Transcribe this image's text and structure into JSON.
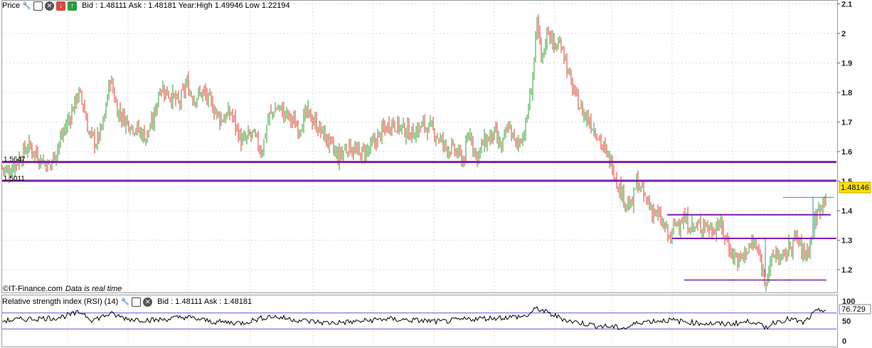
{
  "price_panel": {
    "title": "Price",
    "quote": "Bid : 1.48111 Ask : 1.48181 Year:High 1.49946 Low 1.22194",
    "source": "IT-Finance.com",
    "source_note": "Data is real time",
    "current_value": "1.48146",
    "level_labels": [
      "1.5647",
      "1.5011"
    ]
  },
  "rsi_panel": {
    "title": "Relative strength index (RSI) (14)",
    "quote": "Bid : 1.48111 Ask : 1.48181",
    "current_value": "76.729"
  },
  "colors": {
    "up_candle": "#2ca02c",
    "down_candle": "#e8392e",
    "support_line": "#7d1fa8",
    "rsi_line": "#000000",
    "rsi_band": "#5a5ae0",
    "grid": "#dddddd",
    "current_badge": "#ffdf00"
  },
  "chart_data": [
    {
      "type": "candlestick",
      "title": "Price",
      "y_ticks": [
        1.2,
        1.3,
        1.4,
        1.5,
        1.6,
        1.7,
        1.8,
        1.9,
        2.0,
        2.1
      ],
      "y_tick_labels": [
        "1.2",
        "1.3",
        "1.4",
        "1.5",
        "1.6",
        "1.7",
        "1.8",
        "1.9",
        "2",
        "2.1"
      ],
      "ylim": [
        1.12,
        2.11
      ],
      "grid": true,
      "horizontal_levels": [
        1.5647,
        1.5011
      ],
      "close_path": [
        [
          0,
          1.55
        ],
        [
          12,
          1.53
        ],
        [
          25,
          1.57
        ],
        [
          40,
          1.62
        ],
        [
          55,
          1.58
        ],
        [
          70,
          1.55
        ],
        [
          85,
          1.64
        ],
        [
          100,
          1.73
        ],
        [
          110,
          1.8
        ],
        [
          117,
          1.76
        ],
        [
          125,
          1.66
        ],
        [
          135,
          1.63
        ],
        [
          145,
          1.69
        ],
        [
          155,
          1.85
        ],
        [
          165,
          1.74
        ],
        [
          175,
          1.71
        ],
        [
          190,
          1.68
        ],
        [
          205,
          1.65
        ],
        [
          215,
          1.7
        ],
        [
          225,
          1.82
        ],
        [
          240,
          1.79
        ],
        [
          252,
          1.76
        ],
        [
          262,
          1.83
        ],
        [
          272,
          1.78
        ],
        [
          285,
          1.8
        ],
        [
          300,
          1.75
        ],
        [
          310,
          1.71
        ],
        [
          325,
          1.73
        ],
        [
          340,
          1.63
        ],
        [
          355,
          1.66
        ],
        [
          368,
          1.6
        ],
        [
          378,
          1.72
        ],
        [
          390,
          1.75
        ],
        [
          405,
          1.72
        ],
        [
          420,
          1.68
        ],
        [
          432,
          1.73
        ],
        [
          445,
          1.69
        ],
        [
          460,
          1.64
        ],
        [
          475,
          1.58
        ],
        [
          490,
          1.62
        ],
        [
          505,
          1.59
        ],
        [
          520,
          1.61
        ],
        [
          535,
          1.66
        ],
        [
          550,
          1.7
        ],
        [
          565,
          1.68
        ],
        [
          580,
          1.66
        ],
        [
          595,
          1.69
        ],
        [
          610,
          1.67
        ],
        [
          625,
          1.62
        ],
        [
          640,
          1.6
        ],
        [
          652,
          1.57
        ],
        [
          660,
          1.67
        ],
        [
          670,
          1.58
        ],
        [
          680,
          1.63
        ],
        [
          695,
          1.66
        ],
        [
          705,
          1.61
        ],
        [
          715,
          1.69
        ],
        [
          725,
          1.62
        ],
        [
          738,
          1.67
        ],
        [
          748,
          1.83
        ],
        [
          755,
          2.03
        ],
        [
          762,
          1.9
        ],
        [
          770,
          2.02
        ],
        [
          780,
          1.95
        ],
        [
          790,
          1.97
        ],
        [
          800,
          1.85
        ],
        [
          810,
          1.78
        ],
        [
          820,
          1.73
        ],
        [
          830,
          1.7
        ],
        [
          840,
          1.66
        ],
        [
          850,
          1.6
        ],
        [
          860,
          1.56
        ],
        [
          870,
          1.48
        ],
        [
          880,
          1.43
        ],
        [
          888,
          1.41
        ],
        [
          895,
          1.5
        ],
        [
          905,
          1.45
        ],
        [
          915,
          1.41
        ],
        [
          925,
          1.38
        ],
        [
          935,
          1.34
        ],
        [
          942,
          1.3
        ],
        [
          950,
          1.36
        ],
        [
          960,
          1.37
        ],
        [
          970,
          1.35
        ],
        [
          980,
          1.34
        ],
        [
          990,
          1.36
        ],
        [
          1000,
          1.33
        ],
        [
          1010,
          1.36
        ],
        [
          1020,
          1.31
        ],
        [
          1030,
          1.25
        ],
        [
          1040,
          1.23
        ],
        [
          1050,
          1.27
        ],
        [
          1060,
          1.29
        ],
        [
          1068,
          1.24
        ],
        [
          1075,
          1.17
        ],
        [
          1082,
          1.21
        ],
        [
          1090,
          1.26
        ],
        [
          1100,
          1.23
        ],
        [
          1110,
          1.28
        ],
        [
          1120,
          1.31
        ],
        [
          1130,
          1.25
        ],
        [
          1138,
          1.28
        ],
        [
          1145,
          1.36
        ],
        [
          1152,
          1.41
        ],
        [
          1158,
          1.44
        ],
        [
          1162,
          1.48
        ]
      ]
    },
    {
      "type": "line",
      "title": "Relative strength index (RSI) (14)",
      "y_ticks": [
        0,
        50,
        100
      ],
      "y_tick_labels": [
        "0",
        "50",
        "100"
      ],
      "ylim": [
        0,
        100
      ],
      "bands": [
        30,
        70
      ],
      "last_value": 76.729,
      "series_path": [
        [
          0,
          50
        ],
        [
          40,
          55
        ],
        [
          80,
          58
        ],
        [
          115,
          72
        ],
        [
          130,
          52
        ],
        [
          155,
          68
        ],
        [
          180,
          55
        ],
        [
          220,
          52
        ],
        [
          260,
          60
        ],
        [
          300,
          48
        ],
        [
          340,
          45
        ],
        [
          380,
          62
        ],
        [
          420,
          52
        ],
        [
          460,
          45
        ],
        [
          500,
          48
        ],
        [
          540,
          55
        ],
        [
          580,
          52
        ],
        [
          620,
          48
        ],
        [
          660,
          55
        ],
        [
          700,
          58
        ],
        [
          740,
          62
        ],
        [
          755,
          82
        ],
        [
          770,
          70
        ],
        [
          800,
          50
        ],
        [
          840,
          38
        ],
        [
          880,
          32
        ],
        [
          900,
          48
        ],
        [
          940,
          52
        ],
        [
          980,
          45
        ],
        [
          1020,
          42
        ],
        [
          1040,
          45
        ],
        [
          1060,
          50
        ],
        [
          1075,
          32
        ],
        [
          1090,
          48
        ],
        [
          1110,
          55
        ],
        [
          1130,
          45
        ],
        [
          1145,
          70
        ],
        [
          1155,
          78
        ],
        [
          1162,
          77
        ]
      ]
    }
  ]
}
